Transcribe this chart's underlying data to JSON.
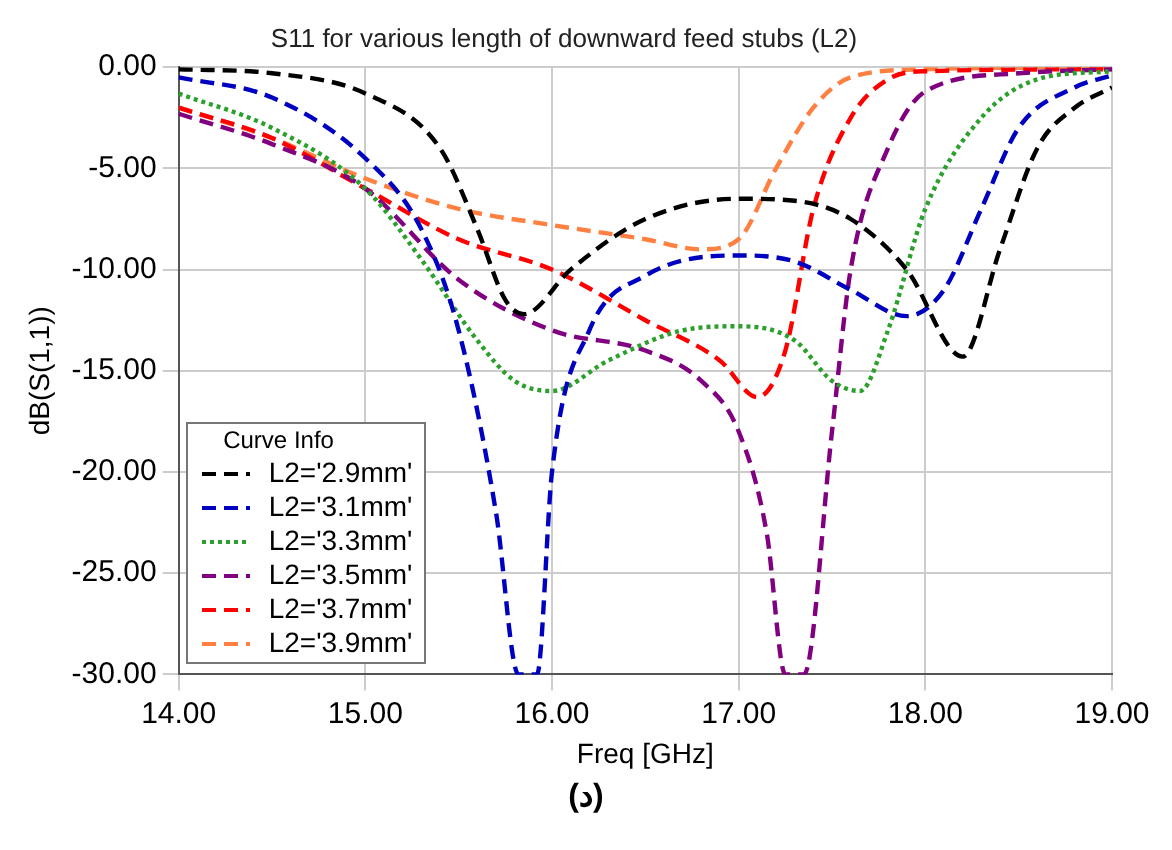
{
  "chart_data": {
    "type": "line",
    "title": "S11 for various length of downward feed stubs (L2)",
    "xlabel": "Freq [GHz]",
    "ylabel": "dB(S(1,1))",
    "legend_title": "Curve Info",
    "legend": "bottom left",
    "grid": true,
    "marker": "none",
    "xlim": [
      14,
      19
    ],
    "xticks": [
      {
        "value": 14,
        "label": "14.00"
      },
      {
        "value": 15,
        "label": "15.00"
      },
      {
        "value": 16,
        "label": "16.00"
      },
      {
        "value": 17,
        "label": "17.00"
      },
      {
        "value": 18,
        "label": "18.00"
      },
      {
        "value": 19,
        "label": "19.00"
      }
    ],
    "ylim": [
      -30,
      0
    ],
    "yticks": [
      {
        "value": -30,
        "label": "-30.00"
      },
      {
        "value": -25,
        "label": "-25.00"
      },
      {
        "value": -20,
        "label": "-20.00"
      },
      {
        "value": -15,
        "label": "-15.00"
      },
      {
        "value": -10,
        "label": "-10.00"
      },
      {
        "value": -5,
        "label": "-5.00"
      },
      {
        "value": 0,
        "label": "0.00"
      }
    ],
    "series": [
      {
        "name": "L2='2.9mm'",
        "color": "#000000",
        "line_style": "dashed",
        "x": [
          14,
          14.5,
          15,
          15.4,
          15.6,
          15.75,
          15.85,
          16.1,
          16.5,
          17,
          17.3,
          17.6,
          17.9,
          18.2,
          18.4,
          18.6,
          18.8,
          19
        ],
        "values": [
          -0.1,
          -0.3,
          -1.3,
          -4,
          -8,
          -11.5,
          -12.2,
          -10,
          -7.5,
          -6.5,
          -6.6,
          -7.5,
          -10,
          -14.3,
          -9,
          -4,
          -2,
          -1
        ]
      },
      {
        "name": "L2='3.1mm'",
        "color": "#0000c0",
        "line_style": "dashed",
        "x": [
          14,
          14.5,
          15,
          15.3,
          15.5,
          15.7,
          15.82,
          15.92,
          16,
          16.2,
          16.5,
          17,
          17.3,
          17.6,
          17.9,
          18.1,
          18.3,
          18.5,
          18.8,
          19
        ],
        "values": [
          -0.5,
          -1.5,
          -4.5,
          -8,
          -13,
          -22,
          -30,
          -30,
          -20,
          -13,
          -10.3,
          -9.3,
          -9.6,
          -11,
          -12.3,
          -11,
          -7,
          -3,
          -1,
          -0.4
        ]
      },
      {
        "name": "L2='3.3mm'",
        "color": "#2ca02c",
        "line_style": "dotted",
        "x": [
          14,
          14.5,
          15,
          15.3,
          15.6,
          15.8,
          16,
          16.3,
          16.7,
          17,
          17.3,
          17.5,
          17.65,
          17.8,
          18,
          18.3,
          18.6,
          19
        ],
        "values": [
          -1.3,
          -3,
          -6,
          -9.5,
          -13.5,
          -15.5,
          -16,
          -14.5,
          -13,
          -12.8,
          -13.5,
          -15.5,
          -16,
          -13,
          -7,
          -2.5,
          -0.6,
          -0.2
        ]
      },
      {
        "name": "L2='3.5mm'",
        "color": "#800080",
        "line_style": "dashed",
        "x": [
          14,
          14.5,
          15,
          15.5,
          16,
          16.5,
          16.8,
          17,
          17.15,
          17.25,
          17.35,
          17.5,
          17.6,
          17.8,
          18,
          18.5,
          19
        ],
        "values": [
          -2.3,
          -3.8,
          -6,
          -10.5,
          -13,
          -14,
          -15.5,
          -18,
          -23,
          -30,
          -30,
          -18,
          -10,
          -4,
          -1.2,
          -0.3,
          -0.1
        ]
      },
      {
        "name": "L2='3.7mm'",
        "color": "#ff0000",
        "line_style": "dashed",
        "x": [
          14,
          14.5,
          15,
          15.5,
          16,
          16.5,
          16.9,
          17.1,
          17.25,
          17.4,
          17.6,
          17.8,
          18,
          19
        ],
        "values": [
          -2,
          -3.5,
          -6,
          -8.5,
          -10,
          -12.5,
          -14.5,
          -16.3,
          -14,
          -7,
          -2.5,
          -0.6,
          -0.2,
          -0.1
        ]
      },
      {
        "name": "L2='3.9mm'",
        "color": "#ff8040",
        "line_style": "dashed",
        "x": [
          14,
          14.5,
          15,
          15.5,
          16,
          16.5,
          16.8,
          17,
          17.2,
          17.4,
          17.6,
          18,
          19
        ],
        "values": [
          -2,
          -3.5,
          -5.5,
          -7,
          -7.8,
          -8.5,
          -9,
          -8.5,
          -5,
          -2,
          -0.5,
          -0.1,
          0
        ]
      }
    ],
    "annotations": [
      "(د)"
    ]
  }
}
